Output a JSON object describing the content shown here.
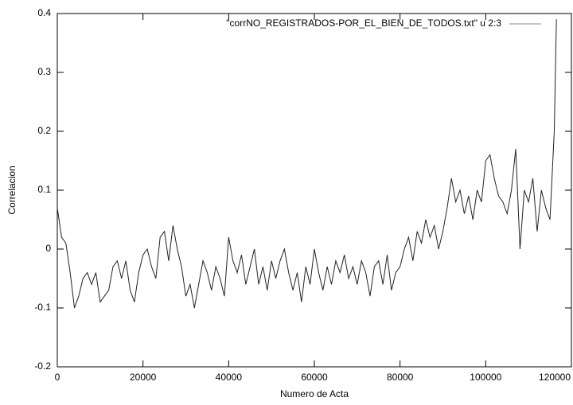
{
  "chart_data": {
    "type": "line",
    "xlabel": "Numero de Acta",
    "ylabel": "Correlacion",
    "xlim": [
      0,
      120000
    ],
    "xticks": [
      0,
      20000,
      40000,
      60000,
      80000,
      100000,
      120000
    ],
    "ylim": [
      -0.2,
      0.4
    ],
    "yticks": [
      -0.2,
      -0.1,
      0,
      0.1,
      0.2,
      0.3,
      0.4
    ],
    "grid": false,
    "legend": "top-right",
    "x": [
      0,
      1000,
      2000,
      3000,
      4000,
      5000,
      6000,
      7000,
      8000,
      9000,
      10000,
      11000,
      12000,
      13000,
      14000,
      15000,
      16000,
      17000,
      18000,
      19000,
      20000,
      21000,
      22000,
      23000,
      24000,
      25000,
      26000,
      27000,
      28000,
      29000,
      30000,
      31000,
      32000,
      33000,
      34000,
      35000,
      36000,
      37000,
      38000,
      39000,
      40000,
      41000,
      42000,
      43000,
      44000,
      45000,
      46000,
      47000,
      48000,
      49000,
      50000,
      51000,
      52000,
      53000,
      54000,
      55000,
      56000,
      57000,
      58000,
      59000,
      60000,
      61000,
      62000,
      63000,
      64000,
      65000,
      66000,
      67000,
      68000,
      69000,
      70000,
      71000,
      72000,
      73000,
      74000,
      75000,
      76000,
      77000,
      78000,
      79000,
      80000,
      81000,
      82000,
      83000,
      84000,
      85000,
      86000,
      87000,
      88000,
      89000,
      90000,
      91000,
      92000,
      93000,
      94000,
      95000,
      96000,
      97000,
      98000,
      99000,
      100000,
      101000,
      102000,
      103000,
      104000,
      105000,
      106000,
      107000,
      108000,
      109000,
      110000,
      111000,
      112000,
      113000,
      114000,
      115000,
      116000,
      116500
    ],
    "series": [
      {
        "name": "\"corrNO_REGISTRADOS-POR_EL_BIEN_DE_TODOS.txt\" u 2:3",
        "color": "#222222",
        "values": [
          0.07,
          0.02,
          0.01,
          -0.04,
          -0.1,
          -0.08,
          -0.05,
          -0.04,
          -0.06,
          -0.04,
          -0.09,
          -0.08,
          -0.07,
          -0.03,
          -0.02,
          -0.05,
          -0.02,
          -0.07,
          -0.09,
          -0.04,
          -0.01,
          0.0,
          -0.03,
          -0.05,
          0.02,
          0.03,
          -0.02,
          0.04,
          0.0,
          -0.03,
          -0.08,
          -0.06,
          -0.1,
          -0.06,
          -0.02,
          -0.04,
          -0.07,
          -0.03,
          -0.05,
          -0.08,
          0.02,
          -0.02,
          -0.04,
          -0.01,
          -0.06,
          -0.03,
          0.0,
          -0.06,
          -0.03,
          -0.07,
          -0.02,
          -0.05,
          -0.02,
          0.0,
          -0.04,
          -0.07,
          -0.04,
          -0.09,
          -0.03,
          -0.06,
          0.0,
          -0.04,
          -0.07,
          -0.03,
          -0.06,
          -0.02,
          -0.04,
          -0.01,
          -0.05,
          -0.03,
          -0.06,
          -0.02,
          -0.04,
          -0.08,
          -0.03,
          -0.02,
          -0.06,
          -0.01,
          -0.07,
          -0.04,
          -0.03,
          0.0,
          0.02,
          -0.02,
          0.03,
          0.01,
          0.05,
          0.02,
          0.04,
          0.0,
          0.03,
          0.07,
          0.12,
          0.08,
          0.1,
          0.06,
          0.09,
          0.05,
          0.1,
          0.08,
          0.15,
          0.16,
          0.12,
          0.09,
          0.08,
          0.06,
          0.1,
          0.17,
          0.0,
          0.1,
          0.08,
          0.12,
          0.03,
          0.1,
          0.07,
          0.05,
          0.2,
          0.39
        ]
      }
    ]
  }
}
